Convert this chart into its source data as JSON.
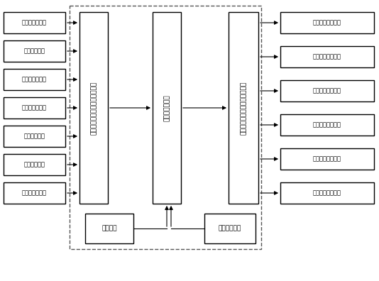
{
  "figsize": [
    5.34,
    3.96
  ],
  "dpi": 100,
  "bg_color": "#ffffff",
  "input_boxes": [
    "横封位置传感器",
    "系统启动信号",
    "光电跟标传感器",
    "下料点动传感器",
    "系统设置信号",
    "系统停止信号",
    "无纸报警传感器"
  ],
  "output_boxes": [
    "纵封抛笼信号输出",
    "横封旋转信号输出",
    "下料充填信号输出",
    "切刀控制信号输出",
    "系统启动指示输出",
    "故障报警信号输出"
  ],
  "center_block_text": "嵌入式微处理器",
  "left_block_text": "输入数字信号调理隔离电路接口",
  "right_block_text": "信号输出接口调理功率驱动电路",
  "bottom_left_text": "按键管理",
  "bottom_right_text": "系统状态显示",
  "font_size_small": 6.0,
  "font_size_mid": 6.5,
  "font_size_vert": 6.5
}
